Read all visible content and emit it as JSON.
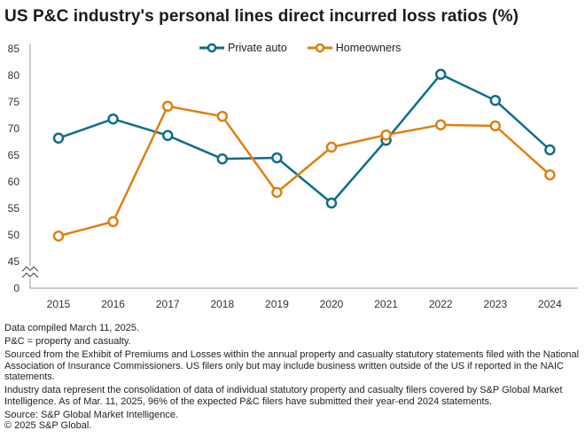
{
  "title": "US P&C industry's personal lines direct incurred loss ratios (%)",
  "colors": {
    "private_auto": "#0f6e87",
    "homeowners": "#e07f10",
    "axis": "#9a9a9a"
  },
  "chart_data": {
    "type": "line",
    "title": "US P&C industry's personal lines direct incurred loss ratios (%)",
    "xlabel": "",
    "ylabel": "",
    "x": [
      "2015",
      "2016",
      "2017",
      "2018",
      "2019",
      "2020",
      "2021",
      "2022",
      "2023",
      "2024"
    ],
    "series": [
      {
        "name": "Private auto",
        "color": "#0f6e87",
        "values": [
          68.2,
          71.8,
          68.7,
          64.3,
          64.5,
          56.0,
          67.8,
          80.2,
          75.3,
          66.0
        ]
      },
      {
        "name": "Homeowners",
        "color": "#e07f10",
        "values": [
          49.8,
          52.5,
          74.2,
          72.3,
          58.0,
          66.5,
          68.8,
          70.7,
          70.5,
          61.3
        ]
      }
    ],
    "ylim": [
      45,
      85
    ],
    "y_ticks": [
      "85",
      "80",
      "75",
      "70",
      "65",
      "60",
      "55",
      "50",
      "45"
    ],
    "y_tick_values": [
      85,
      80,
      75,
      70,
      65,
      60,
      55,
      50,
      45
    ],
    "y_zero_label": "0",
    "axis_break": true,
    "grid": false,
    "legend_position": "top-center",
    "markers": "hollow-circle"
  },
  "legend": [
    {
      "label": "Private auto"
    },
    {
      "label": "Homeowners"
    }
  ],
  "notes": [
    "Data compiled March 11, 2025.",
    "P&C = property and casualty.",
    "Sourced from the Exhibit of Premiums and Losses within the annual property and casualty statutory statements filed with the National Association of Insurance Commissioners. US filers only but may include business written outside of the US if reported in the NAIC statements.",
    "Industry data represent the consolidation of data of individual statutory property and casualty filers covered by S&P Global Market Intelligence. As of Mar. 11, 2025, 96% of the expected P&C filers have submitted their year-end 2024 statements.",
    "Source: S&P Global Market Intelligence.",
    "© 2025 S&P Global."
  ]
}
